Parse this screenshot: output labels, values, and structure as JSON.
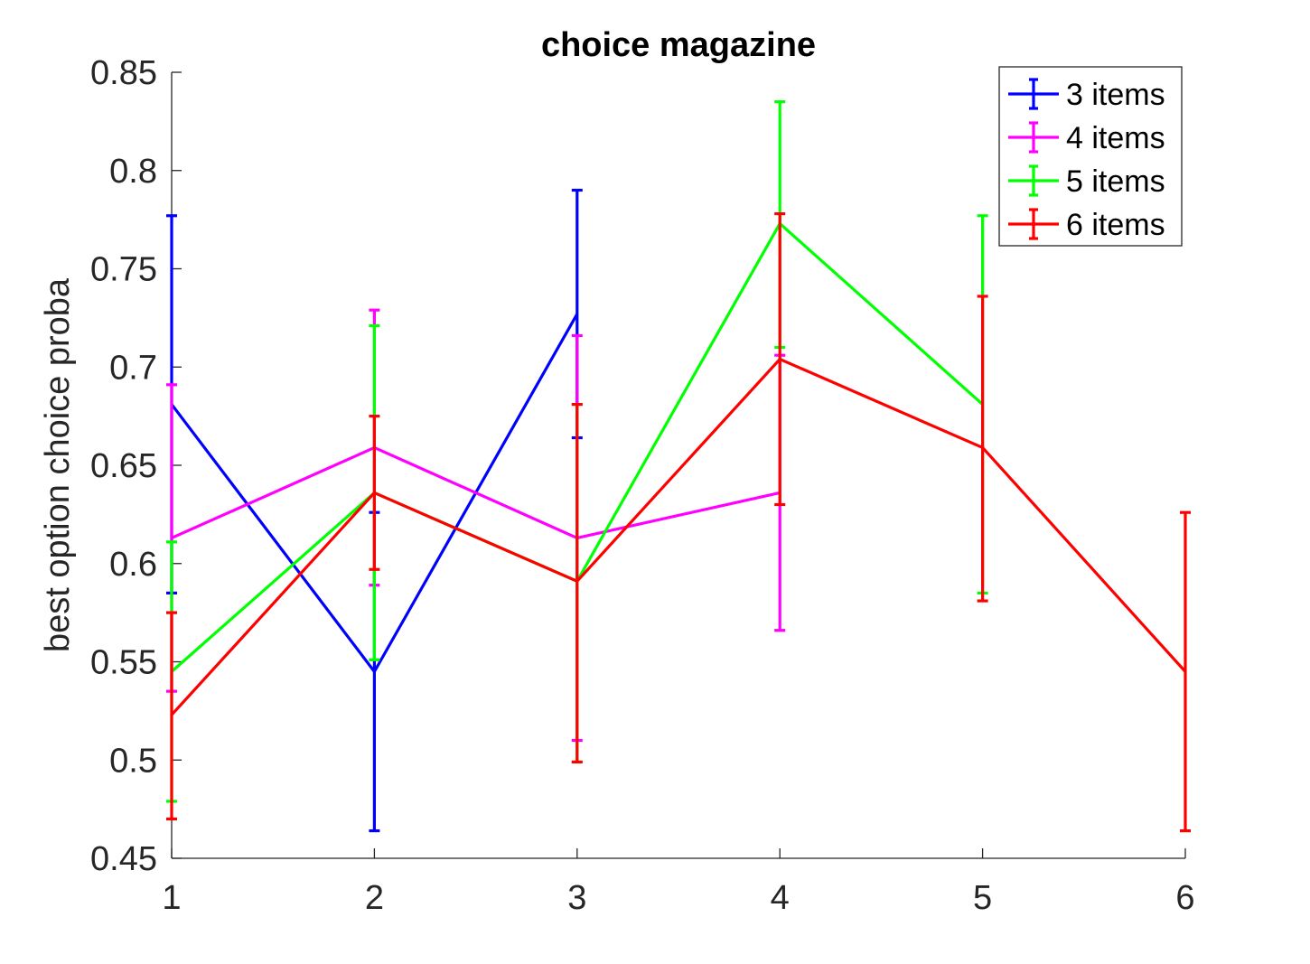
{
  "chart_data": {
    "type": "line",
    "title": "choice magazine",
    "xlabel": "",
    "ylabel": "best option choice proba",
    "xlim": [
      1,
      6
    ],
    "ylim": [
      0.45,
      0.85
    ],
    "xticks": [
      "1",
      "2",
      "3",
      "4",
      "5",
      "6"
    ],
    "yticks": [
      "0.45",
      "0.5",
      "0.55",
      "0.6",
      "0.65",
      "0.7",
      "0.75",
      "0.8",
      "0.85"
    ],
    "grid": false,
    "legend_position": "top-right",
    "series": [
      {
        "name": "3 items",
        "color": "#0000ff",
        "x": [
          1,
          2,
          3
        ],
        "y": [
          0.681,
          0.545,
          0.727
        ],
        "lower": [
          0.585,
          0.464,
          0.664
        ],
        "upper": [
          0.777,
          0.626,
          0.79
        ]
      },
      {
        "name": "4 items",
        "color": "#ff00ff",
        "x": [
          1,
          2,
          3,
          4
        ],
        "y": [
          0.613,
          0.659,
          0.613,
          0.636
        ],
        "lower": [
          0.535,
          0.589,
          0.51,
          0.566
        ],
        "upper": [
          0.691,
          0.729,
          0.716,
          0.706
        ]
      },
      {
        "name": "5 items",
        "color": "#00ff00",
        "x": [
          1,
          2,
          3,
          4,
          5
        ],
        "y": [
          0.545,
          0.636,
          0.591,
          0.773,
          0.681
        ],
        "lower": [
          0.479,
          0.551,
          0.499,
          0.71,
          0.585
        ],
        "upper": [
          0.611,
          0.721,
          0.681,
          0.835,
          0.777
        ]
      },
      {
        "name": "6 items",
        "color": "#ff0000",
        "x": [
          1,
          2,
          3,
          4,
          5,
          6
        ],
        "y": [
          0.523,
          0.636,
          0.591,
          0.704,
          0.659,
          0.545
        ],
        "lower": [
          0.47,
          0.597,
          0.499,
          0.63,
          0.581,
          0.464
        ],
        "upper": [
          0.575,
          0.675,
          0.681,
          0.778,
          0.736,
          0.626
        ]
      }
    ]
  }
}
